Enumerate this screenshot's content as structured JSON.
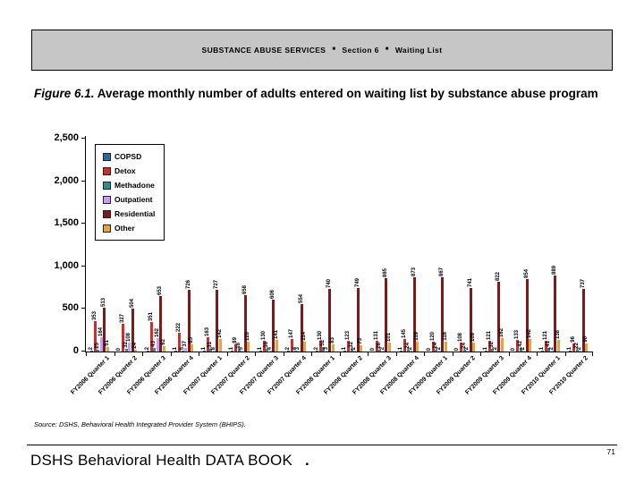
{
  "header_banner": {
    "section_label": "SUBSTANCE ABUSE SERVICES",
    "bullet": "■",
    "section_number": "Section 6",
    "page_topic": "Waiting List",
    "bg_color": "#c6c6c6"
  },
  "figure_title": {
    "prefix": "Figure 6.1.",
    "text": "  Average monthly number of adults entered on waiting list by substance abuse program"
  },
  "chart_data": {
    "type": "bar",
    "title": "Average monthly number of adults entered on waiting list by substance abuse program",
    "xlabel": "",
    "ylabel": "",
    "ylim": [
      0,
      2500
    ],
    "grid": false,
    "legend_position": "upper-left-inside",
    "bar_value_labels": true,
    "y_ticks": [
      {
        "value": 0,
        "label": "0"
      },
      {
        "value": 500,
        "label": "500"
      },
      {
        "value": 1000,
        "label": "1,000"
      },
      {
        "value": 1500,
        "label": "1,500"
      },
      {
        "value": 2000,
        "label": "2,000"
      },
      {
        "value": 2500,
        "label": "2,500"
      }
    ],
    "categories": [
      "FY2006 Quarter 1",
      "FY2006 Quarter 2",
      "FY2006 Quarter 3",
      "FY2006 Quarter 4",
      "FY2007 Quarter 1",
      "FY2007 Quarter 2",
      "FY2007 Quarter 3",
      "FY2007 Quarter 4",
      "FY2008 Quarter 1",
      "FY2008 Quarter 2",
      "FY2008 Quarter 3",
      "FY2008 Quarter 4",
      "FY2009 Quarter 1",
      "FY2009 Quarter 2",
      "FY2009 Quarter 3",
      "FY2009 Quarter 4",
      "FY2010 Quarter 1",
      "FY2010 Quarter 2"
    ],
    "series": [
      {
        "name": "COPSD",
        "color": "#31659C",
        "values": [
          2,
          0,
          2,
          1,
          1,
          1,
          1,
          2,
          2,
          1,
          0,
          1,
          0,
          0,
          1,
          0,
          1,
          1
        ]
      },
      {
        "name": "Detox",
        "color": "#D22B2B",
        "values": [
          353,
          327,
          351,
          222,
          163,
          89,
          130,
          147,
          130,
          123,
          131,
          145,
          120,
          108,
          121,
          133,
          121,
          96
        ]
      },
      {
        "name": "Methadone",
        "color": "#2E8F8A",
        "values": [
          25,
          32,
          43,
          5,
          31,
          18,
          36,
          4,
          52,
          32,
          26,
          24,
          24,
          24,
          32,
          42,
          41,
          22
        ]
      },
      {
        "name": "Outpatient",
        "color": "#CC99FF",
        "values": [
          164,
          108,
          162,
          37,
          8,
          5,
          4,
          3,
          3,
          2,
          2,
          2,
          2,
          2,
          2,
          2,
          2,
          2
        ]
      },
      {
        "name": "Residential",
        "color": "#7C1A1C",
        "values": [
          513,
          504,
          653,
          726,
          727,
          658,
          606,
          554,
          740,
          749,
          865,
          873,
          867,
          741,
          822,
          854,
          889,
          737
        ]
      },
      {
        "name": "Other",
        "color": "#E8A33D",
        "values": [
          51,
          24,
          62,
          85,
          142,
          120,
          141,
          114,
          83,
          73,
          101,
          119,
          116,
          109,
          162,
          142,
          138,
          90
        ]
      }
    ]
  },
  "source_note": {
    "label": "Source:",
    "text": " DSHS, Behavioral Health Integrated Provider System (BHIPS)."
  },
  "footer": {
    "book_title": "DSHS Behavioral Health DATA BOOK",
    "suffix": ".",
    "page_number": "71"
  }
}
